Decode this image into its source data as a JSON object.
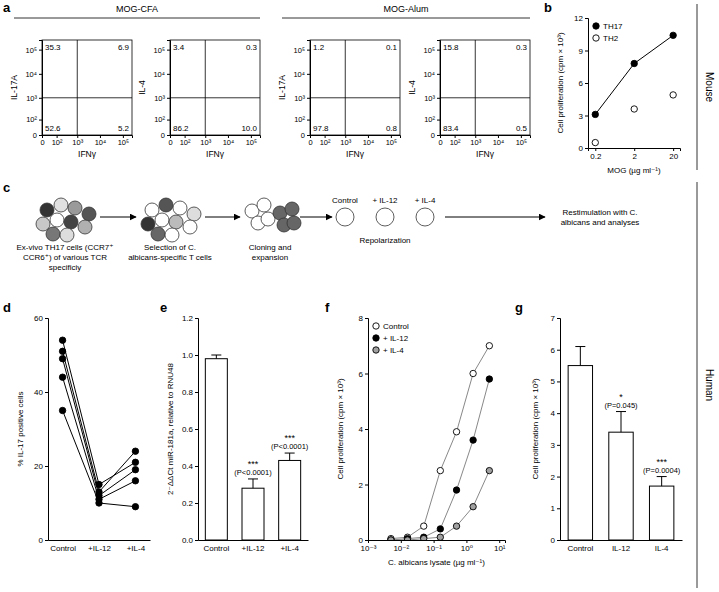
{
  "sections": [
    "Mouse",
    "Human"
  ],
  "diagram": {
    "panel": "c",
    "steps": [
      {
        "label": "Ex-vivo TH17 cells (CCR7⁺ CCR6⁺) of various TCR specificiy"
      },
      {
        "label": "Selection of C. albicans-specific T cells"
      },
      {
        "label": "Cloning and expansion"
      },
      {
        "label": "Repolarization",
        "conditions": [
          "Control",
          "+ IL-12",
          "+ IL-4"
        ]
      },
      {
        "label": "Restimulation with C. albicans and analyses"
      }
    ]
  },
  "chart_data": [
    {
      "panel": "a",
      "type": "flow",
      "log": true,
      "data_labels": true,
      "xlim": [
        0,
        250000
      ],
      "ylim": [
        0,
        250000
      ],
      "xticks": [
        0,
        {
          "value": 100,
          "label": "10²"
        },
        {
          "value": 1000,
          "label": "10³"
        },
        {
          "value": 10000,
          "label": "10⁴"
        },
        {
          "value": 100000,
          "label": "10⁵"
        }
      ],
      "yticks": [
        0,
        {
          "value": 100,
          "label": "10²"
        },
        {
          "value": 1000,
          "label": "10³"
        },
        {
          "value": 10000,
          "label": "10⁴"
        },
        {
          "value": 100000,
          "label": "10⁵"
        }
      ],
      "gate_x": 1000,
      "gate_y": 1000,
      "groups": [
        {
          "title": "MOG-CFA",
          "plots": [
            {
              "x_label": "IFNγ",
              "y_label": "IL-17A",
              "values": [
                35.3,
                6.9,
                52.6,
                5.2
              ],
              "value_labels": [
                "35.3",
                "6.9",
                "52.6",
                "5.2"
              ]
            },
            {
              "x_label": "IFNγ",
              "y_label": "IL-4",
              "values": [
                3.4,
                0.3,
                86.2,
                10.0
              ],
              "value_labels": [
                "3.4",
                "0.3",
                "86.2",
                "10.0"
              ]
            }
          ]
        },
        {
          "title": "MOG-Alum",
          "plots": [
            {
              "x_label": "IFNγ",
              "y_label": "IL-17A",
              "values": [
                1.2,
                0.1,
                97.8,
                0.8
              ],
              "value_labels": [
                "1.2",
                "0.1",
                "97.8",
                "0.8"
              ]
            },
            {
              "x_label": "IFNγ",
              "y_label": "IL-4",
              "values": [
                15.8,
                0.3,
                83.4,
                0.5
              ],
              "value_labels": [
                "15.8",
                "0.3",
                "83.4",
                "0.5"
              ]
            }
          ]
        }
      ]
    },
    {
      "panel": "b",
      "type": "line",
      "log": "x",
      "legend": "top-left",
      "x": [
        0.2,
        2,
        20
      ],
      "xlim": [
        0.13,
        30
      ],
      "xticks": [
        0.2,
        2,
        20
      ],
      "ylim": [
        0,
        12
      ],
      "yticks": [
        0,
        3,
        6,
        9,
        12
      ],
      "x_label": "MOG (µg ml⁻¹)",
      "y_label": "Cell proliferation (cpm × 10³)",
      "series": [
        {
          "name": "TH17",
          "color": "#000000",
          "marker": "circle",
          "values": [
            3.1,
            7.8,
            10.4
          ]
        },
        {
          "name": "TH2",
          "color": "#ffffff",
          "marker": "circle",
          "values": [
            0.5,
            3.6,
            4.9
          ]
        }
      ]
    },
    {
      "panel": "d",
      "type": "line",
      "categories": [
        "Control",
        "+IL-12",
        "+IL-4"
      ],
      "ylim": [
        0,
        60
      ],
      "yticks": [
        0,
        20,
        40,
        60
      ],
      "y_label": "% IL-17 positive cells",
      "series": [
        {
          "color": "#000000",
          "marker": "circle",
          "values": [
            54,
            15,
            21
          ]
        },
        {
          "color": "#000000",
          "marker": "circle",
          "values": [
            51,
            13,
            24
          ]
        },
        {
          "color": "#000000",
          "marker": "circle",
          "values": [
            49,
            12,
            19
          ]
        },
        {
          "color": "#000000",
          "marker": "circle",
          "values": [
            44,
            11,
            16
          ]
        },
        {
          "color": "#000000",
          "marker": "circle",
          "values": [
            35,
            10,
            9
          ]
        }
      ]
    },
    {
      "panel": "e",
      "type": "bar",
      "color": "#ffffff",
      "categories": [
        "Control",
        "+IL-12",
        "+IL-4"
      ],
      "values": [
        0.98,
        0.28,
        0.43
      ],
      "errors": [
        0.02,
        0.05,
        0.04
      ],
      "ylim": [
        0,
        1.2
      ],
      "yticks": [
        {
          "value": 0,
          "label": "0.0"
        },
        0.2,
        0.4,
        0.6,
        0.8,
        {
          "value": 1,
          "label": "1.0"
        },
        1.2
      ],
      "y_label": "2⁻ΔΔCt miR-181a, relative to RNU48",
      "annotations": [
        {
          "category": "+IL-12",
          "stars": "***",
          "text": "(P<0.0001)"
        },
        {
          "category": "+IL-4",
          "stars": "***",
          "text": "(P<0.0001)"
        }
      ]
    },
    {
      "panel": "f",
      "type": "line",
      "log": "x",
      "legend": "top-left",
      "x": [
        0.005,
        0.016,
        0.05,
        0.16,
        0.5,
        1.6,
        5
      ],
      "xlim": [
        0.001,
        15
      ],
      "xticks": [
        {
          "value": 0.001,
          "label": "10⁻³"
        },
        {
          "value": 0.01,
          "label": "10⁻²"
        },
        {
          "value": 0.1,
          "label": "10⁻¹"
        },
        {
          "value": 1,
          "label": "10⁰"
        },
        {
          "value": 10,
          "label": "10¹"
        }
      ],
      "ylim": [
        0,
        8
      ],
      "yticks": [
        0,
        2,
        4,
        6,
        8
      ],
      "x_label": "C. albicans lysate (µg ml⁻¹)",
      "y_label": "Cell proliferation (cpm × 10³)",
      "series": [
        {
          "name": "Control",
          "color": "#ffffff",
          "marker": "circle",
          "values": [
            0.05,
            0.1,
            0.5,
            2.5,
            3.9,
            6.0,
            7.0
          ]
        },
        {
          "name": "+ IL-12",
          "color": "#000000",
          "marker": "circle",
          "values": [
            0,
            0.05,
            0.1,
            0.4,
            1.8,
            3.6,
            5.8
          ]
        },
        {
          "name": "+ IL-4",
          "color": "#a0a0a0",
          "marker": "circle",
          "values": [
            0,
            0,
            0.05,
            0.1,
            0.5,
            1.2,
            2.5
          ]
        }
      ]
    },
    {
      "panel": "g",
      "type": "bar",
      "color": "#ffffff",
      "categories": [
        "Control",
        "IL-12",
        "IL-4"
      ],
      "values": [
        5.5,
        3.4,
        1.7
      ],
      "errors": [
        0.6,
        0.65,
        0.3
      ],
      "ylim": [
        0,
        7
      ],
      "yticks": [
        0,
        1,
        2,
        3,
        4,
        5,
        6,
        7
      ],
      "y_label": "Cell proliferation (cpm × 10³)",
      "annotations": [
        {
          "category": "IL-12",
          "stars": "*",
          "text": "(P=0.045)"
        },
        {
          "category": "IL-4",
          "stars": "***",
          "text": "(P=0.0004)"
        }
      ]
    }
  ]
}
